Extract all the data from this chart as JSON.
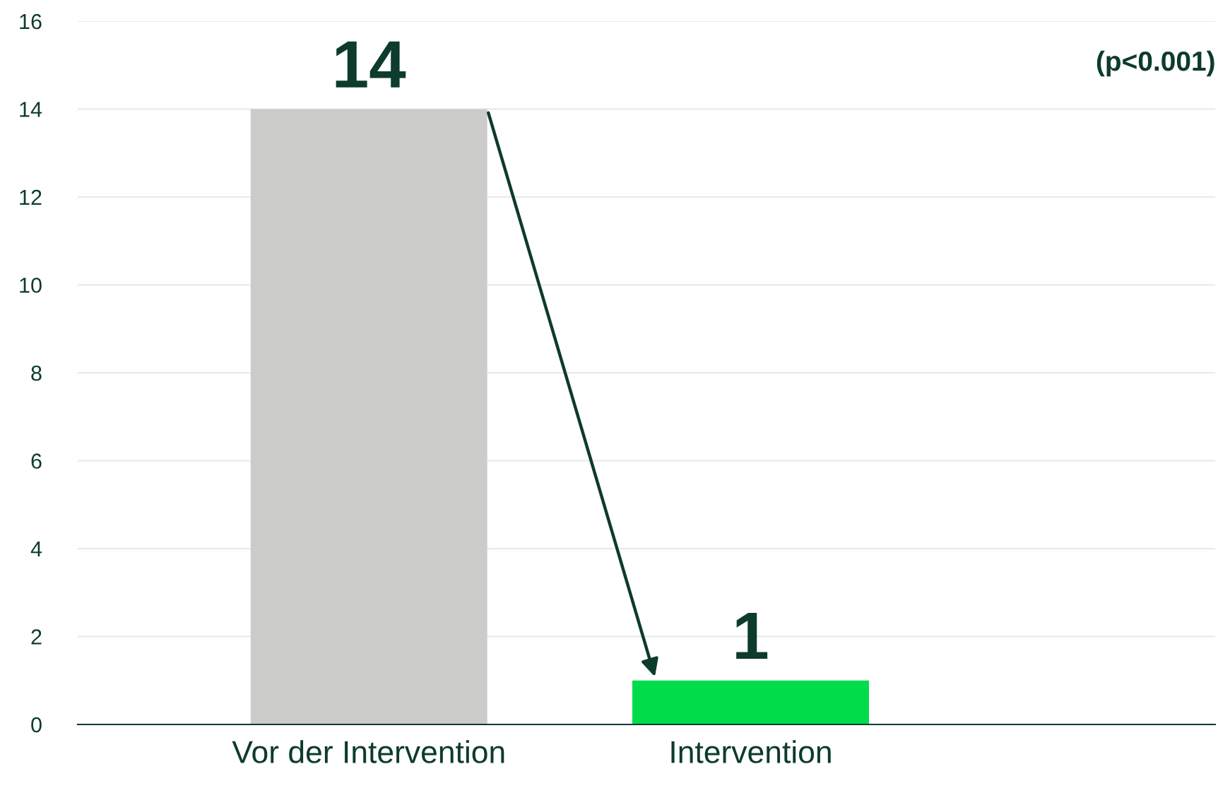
{
  "chart_data": {
    "type": "bar",
    "categories": [
      "Vor der Intervention",
      "Intervention"
    ],
    "values": [
      14,
      1
    ],
    "colors": [
      "#cbcbc9",
      "#00dc4a"
    ],
    "ylim": [
      0,
      16
    ],
    "yticks": [
      0,
      2,
      4,
      6,
      8,
      10,
      12,
      14,
      16
    ],
    "grid": "y",
    "data_labels": true,
    "annotations": [
      "(p<0.001)"
    ]
  }
}
